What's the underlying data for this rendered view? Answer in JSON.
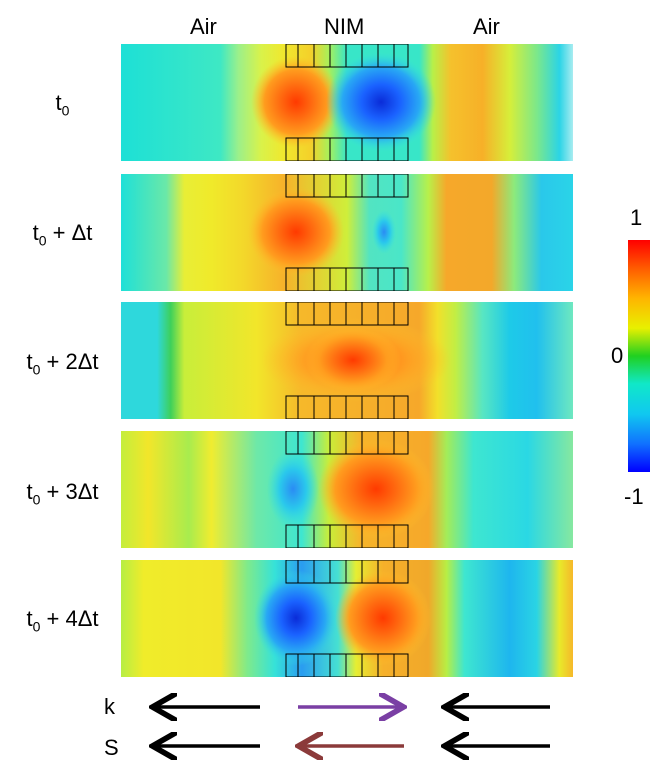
{
  "headers": {
    "left": "Air",
    "middle": "NIM",
    "right": "Air"
  },
  "rows": [
    {
      "label": "t",
      "sub": "0",
      "suffix": ""
    },
    {
      "label": "t",
      "sub": "0",
      "suffix": " + Δt"
    },
    {
      "label": "t",
      "sub": "0",
      "suffix": " + 2Δt"
    },
    {
      "label": "t",
      "sub": "0",
      "suffix": " + 3Δt"
    },
    {
      "label": "t",
      "sub": "0",
      "suffix": " + 4Δt"
    }
  ],
  "colorbar": {
    "max": "1",
    "mid": "0",
    "min": "-1"
  },
  "arrows": {
    "k_label": "k",
    "s_label": "S",
    "k_directions": [
      "left",
      "right",
      "left"
    ],
    "s_directions": [
      "left",
      "left",
      "left"
    ],
    "colors": {
      "black": "#000000",
      "k_nim": "#7a3fa4",
      "s_nim": "#8b3a3a"
    }
  },
  "field_colors": {
    "red": "#ff2a00",
    "orange": "#ff8c00",
    "yellow": "#f2e600",
    "green": "#28c84a",
    "cyan": "#19e6e6",
    "blue": "#1a5cff"
  }
}
